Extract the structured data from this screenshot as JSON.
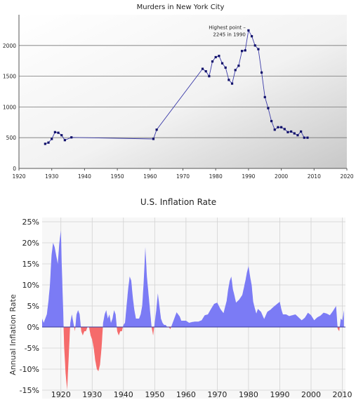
{
  "chart_data": [
    {
      "type": "line",
      "title": "Murders in New York City",
      "xlabel": "",
      "ylabel": "",
      "xlim": [
        1920,
        2020
      ],
      "ylim": [
        0,
        2500
      ],
      "x_ticks": [
        "1920",
        "1930",
        "1940",
        "1950",
        "1960",
        "1970",
        "1980",
        "1990",
        "2000",
        "2010",
        "2020"
      ],
      "y_ticks": [
        "0",
        "500",
        "1000",
        "1500",
        "2000"
      ],
      "grid": true,
      "annotation": {
        "line1": "Highest point –",
        "line2": "2245 in 1990",
        "x": 1990,
        "y": 2245
      },
      "series": [
        {
          "x": [
            1928,
            1929,
            1930,
            1931,
            1932,
            1933,
            1934,
            1936,
            1961,
            1962,
            1976,
            1977,
            1978,
            1979,
            1980,
            1981,
            1982,
            1983,
            1984,
            1985,
            1986,
            1987,
            1988,
            1989,
            1990,
            1991,
            1992,
            1993,
            1994,
            1995,
            1996,
            1997,
            1998,
            1999,
            2000,
            2001,
            2002,
            2003,
            2004,
            2005,
            2006,
            2007,
            2008
          ],
          "y": [
            400,
            420,
            480,
            590,
            580,
            540,
            460,
            505,
            480,
            630,
            1620,
            1580,
            1500,
            1740,
            1810,
            1830,
            1710,
            1640,
            1440,
            1380,
            1600,
            1670,
            1910,
            1920,
            2245,
            2150,
            2000,
            1940,
            1560,
            1160,
            980,
            770,
            630,
            670,
            670,
            640,
            590,
            600,
            570,
            540,
            600,
            500,
            500
          ]
        }
      ]
    },
    {
      "type": "area",
      "title": "U.S. Inflation Rate",
      "xlabel": "",
      "ylabel": "Annual Inflation Rate",
      "xlim": [
        1914,
        2011
      ],
      "ylim": [
        -17,
        26
      ],
      "x_ticks": [
        "1920",
        "1930",
        "1940",
        "1950",
        "1960",
        "1970",
        "1980",
        "1990",
        "2000",
        "2010"
      ],
      "y_ticks": [
        "25%",
        "20%",
        "15%",
        "10%",
        "5%",
        "0%",
        "-5%",
        "-10%",
        "-15%"
      ],
      "y_tick_values": [
        25,
        20,
        15,
        10,
        5,
        0,
        -5,
        -10,
        -15
      ],
      "grid": true,
      "colors": {
        "positive": "#7b7bf5",
        "negative": "#f56b6b"
      },
      "series": [
        {
          "x": [
            1914,
            1914.5,
            1915,
            1915.5,
            1916,
            1916.5,
            1917,
            1917.5,
            1918,
            1918.5,
            1919,
            1919.5,
            1920,
            1920.3,
            1920.7,
            1921,
            1921.5,
            1922,
            1922.5,
            1923,
            1923.5,
            1924,
            1924.5,
            1925,
            1925.5,
            1926,
            1926.5,
            1927,
            1927.5,
            1928,
            1928.5,
            1929,
            1929.5,
            1930,
            1930.5,
            1931,
            1931.5,
            1932,
            1932.5,
            1933,
            1933.5,
            1934,
            1934.5,
            1935,
            1935.5,
            1936,
            1936.5,
            1937,
            1937.5,
            1938,
            1938.5,
            1939,
            1939.5,
            1940,
            1940.5,
            1941,
            1941.5,
            1942,
            1942.5,
            1943,
            1943.5,
            1944,
            1944.5,
            1945,
            1945.5,
            1946,
            1946.5,
            1947,
            1947.5,
            1948,
            1948.5,
            1949,
            1949.5,
            1950,
            1950.5,
            1951,
            1951.5,
            1952,
            1952.5,
            1953,
            1953.5,
            1954,
            1954.5,
            1955,
            1955.5,
            1956,
            1956.5,
            1957,
            1957.5,
            1958,
            1958.5,
            1959,
            1959.5,
            1960,
            1961,
            1962,
            1963,
            1964,
            1965,
            1966,
            1967,
            1968,
            1969,
            1970,
            1971,
            1972,
            1973,
            1973.5,
            1974,
            1974.5,
            1975,
            1975.5,
            1976,
            1977,
            1978,
            1979,
            1979.5,
            1980,
            1980.5,
            1981,
            1981.5,
            1982,
            1982.5,
            1983,
            1984,
            1985,
            1986,
            1987,
            1988,
            1989,
            1990,
            1990.5,
            1991,
            1992,
            1993,
            1994,
            1995,
            1996,
            1997,
            1998,
            1999,
            2000,
            2001,
            2002,
            2003,
            2004,
            2005,
            2006,
            2007,
            2008,
            2008.5,
            2009,
            2009.5,
            2010,
            2010.5
          ],
          "y": [
            2,
            1,
            2,
            3,
            6,
            10,
            17,
            20,
            19,
            17,
            15,
            20,
            23,
            14,
            5,
            -4,
            -11,
            -15,
            -7,
            1,
            3,
            1,
            -1,
            3,
            4,
            3,
            -1,
            -2,
            -1,
            -1,
            0,
            0,
            -2,
            -3,
            -5,
            -8,
            -10,
            -10.5,
            -9,
            -5,
            1,
            3,
            4,
            2,
            3,
            1,
            2,
            4,
            3,
            -1,
            -2,
            -1,
            -1,
            0.5,
            1,
            5,
            9,
            12,
            11,
            7,
            4,
            2,
            2,
            2,
            3,
            5,
            11,
            19,
            12,
            8,
            4,
            0,
            -2,
            1,
            4,
            8,
            5,
            2,
            1,
            0.5,
            0.5,
            0,
            0,
            -0.5,
            0.5,
            1.5,
            2.5,
            3.5,
            3,
            2.5,
            1.5,
            1.5,
            1.5,
            1.5,
            1,
            1.2,
            1.3,
            1.3,
            1.6,
            2.8,
            3,
            4.3,
            5.5,
            5.8,
            4.3,
            3.3,
            6.2,
            9,
            11,
            12,
            9,
            7.5,
            5.8,
            6.5,
            7.6,
            11,
            13,
            14.5,
            12,
            10,
            6,
            4.5,
            3.2,
            4.3,
            3.6,
            1.9,
            3.6,
            4.1,
            4.8,
            5.4,
            6,
            4.2,
            3,
            3,
            2.6,
            2.8,
            3,
            2.3,
            1.6,
            2.2,
            3.4,
            2.8,
            1.6,
            2.3,
            2.7,
            3.4,
            3.2,
            2.8,
            3.8,
            5,
            -0.4,
            -1,
            2,
            1.6,
            4
          ]
        }
      ]
    }
  ]
}
